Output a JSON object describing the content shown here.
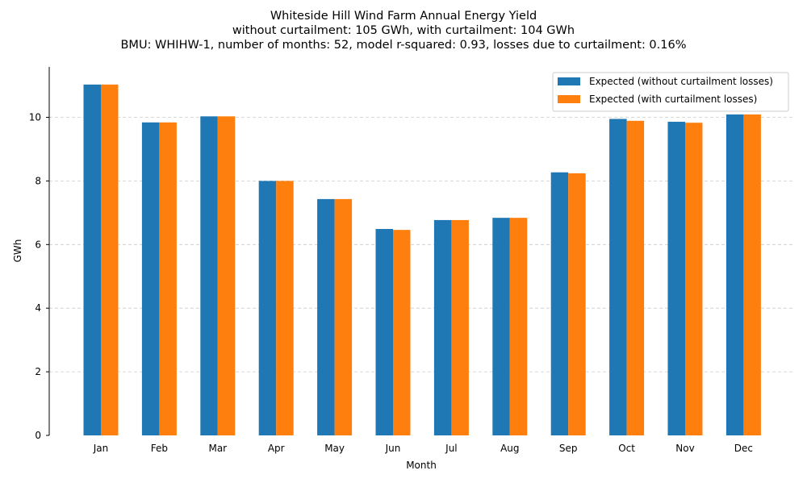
{
  "chart_data": {
    "type": "bar",
    "title_lines": [
      "Whiteside Hill Wind Farm Annual Energy Yield",
      "without curtailment: 105 GWh, with curtailment: 104 GWh",
      "BMU: WHIHW-1, number of months: 52, model r-squared: 0.93, losses due to curtailment: 0.16%"
    ],
    "xlabel": "Month",
    "ylabel": "GWh",
    "ylim": [
      0,
      11.6
    ],
    "yticks": [
      0,
      2,
      4,
      6,
      8,
      10
    ],
    "grid": "y-dashed",
    "legend_position": "top-right",
    "categories": [
      "Jan",
      "Feb",
      "Mar",
      "Apr",
      "May",
      "Jun",
      "Jul",
      "Aug",
      "Sep",
      "Oct",
      "Nov",
      "Dec"
    ],
    "series": [
      {
        "name": "Expected (without curtailment losses)",
        "color": "#1f77b4",
        "values": [
          11.03,
          9.84,
          10.03,
          8.0,
          7.43,
          6.49,
          6.77,
          6.84,
          8.27,
          9.95,
          9.86,
          10.09
        ]
      },
      {
        "name": "Expected (with curtailment losses)",
        "color": "#ff7f0e",
        "values": [
          11.03,
          9.84,
          10.03,
          8.0,
          7.43,
          6.46,
          6.77,
          6.84,
          8.24,
          9.89,
          9.83,
          10.09
        ]
      }
    ]
  }
}
